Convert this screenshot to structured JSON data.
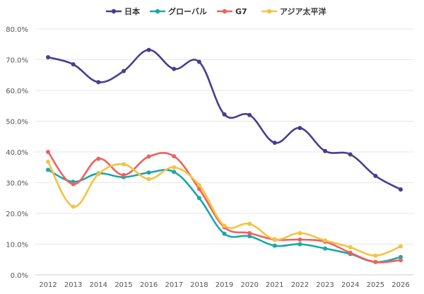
{
  "chart_data": {
    "type": "line",
    "title": "",
    "xlabel": "",
    "ylabel": "",
    "legend_position": "top",
    "grid": true,
    "categories": [
      "2012",
      "2013",
      "2014",
      "2015",
      "2016",
      "2017",
      "2018",
      "2019",
      "2020",
      "2021",
      "2022",
      "2023",
      "2024",
      "2025",
      "2026"
    ],
    "ylim": [
      0,
      80
    ],
    "y_ticks": [
      "0.0%",
      "10.0%",
      "20.0%",
      "30.0%",
      "40.0%",
      "50.0%",
      "60.0%",
      "70.0%",
      "80.0%"
    ],
    "series": [
      {
        "name": "日本",
        "color": "#4b3b8f",
        "values": [
          70.8,
          68.5,
          62.7,
          66.3,
          73.2,
          67.0,
          69.3,
          52.2,
          52.0,
          43.0,
          47.8,
          40.3,
          39.2,
          32.2,
          27.8
        ]
      },
      {
        "name": "グローバル",
        "color": "#1aa8a8",
        "values": [
          34.2,
          30.3,
          33.0,
          31.8,
          33.3,
          33.5,
          25.0,
          13.4,
          12.6,
          9.5,
          10.0,
          8.6,
          6.8,
          4.2,
          5.8
        ]
      },
      {
        "name": "G7",
        "color": "#f06060",
        "values": [
          40.0,
          29.5,
          37.8,
          32.5,
          38.5,
          38.6,
          28.0,
          15.5,
          13.6,
          11.5,
          11.5,
          10.8,
          7.2,
          4.2,
          4.8
        ]
      },
      {
        "name": "アジア太平洋",
        "color": "#f5c242",
        "values": [
          36.8,
          22.2,
          32.8,
          36.0,
          31.2,
          35.0,
          29.2,
          16.0,
          16.6,
          11.6,
          13.6,
          11.2,
          9.0,
          6.3,
          9.3
        ]
      }
    ]
  }
}
